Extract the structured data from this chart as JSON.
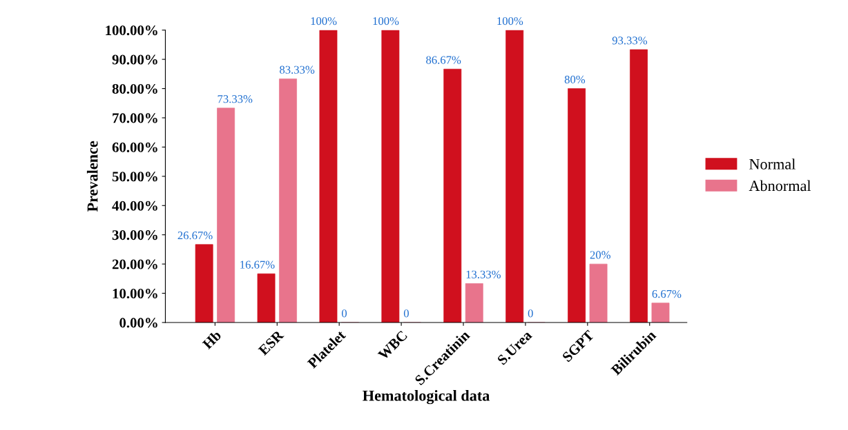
{
  "chart_data": {
    "type": "bar",
    "xlabel": "Hematological data",
    "ylabel": "Prevalence",
    "categories": [
      "Hb",
      "ESR",
      "Platelet",
      "WBC",
      "S.Creatinin",
      "S.Urea",
      "SGPT",
      "Bilirubin"
    ],
    "series": [
      {
        "name": "Normal",
        "color": "#d0101e",
        "values": [
          26.67,
          16.67,
          100,
          100,
          86.67,
          100,
          80,
          93.33
        ],
        "value_labels": [
          "26.67%",
          "16.67%",
          "100%",
          "100%",
          "86.67%",
          "100%",
          "80%",
          "93.33%"
        ]
      },
      {
        "name": "Abnormal",
        "color": "#e8748c",
        "values": [
          73.33,
          83.33,
          0,
          0,
          13.33,
          0,
          20,
          6.67
        ],
        "value_labels": [
          "73.33%",
          "83.33%",
          "0",
          "0",
          "13.33%",
          "0",
          "20%",
          "6.67%"
        ]
      }
    ],
    "ylim": [
      0,
      100
    ],
    "yticks": [
      {
        "value": 0,
        "label": "0.00%"
      },
      {
        "value": 10,
        "label": "10.00%"
      },
      {
        "value": 20,
        "label": "20.00%"
      },
      {
        "value": 30,
        "label": "30.00%"
      },
      {
        "value": 40,
        "label": "40.00%"
      },
      {
        "value": 50,
        "label": "50.00%"
      },
      {
        "value": 60,
        "label": "60.00%"
      },
      {
        "value": 70,
        "label": "70.00%"
      },
      {
        "value": 80,
        "label": "80.00%"
      },
      {
        "value": 90,
        "label": "90.00%"
      },
      {
        "value": 100,
        "label": "100.00%"
      }
    ],
    "legend": "right",
    "grid": false
  }
}
